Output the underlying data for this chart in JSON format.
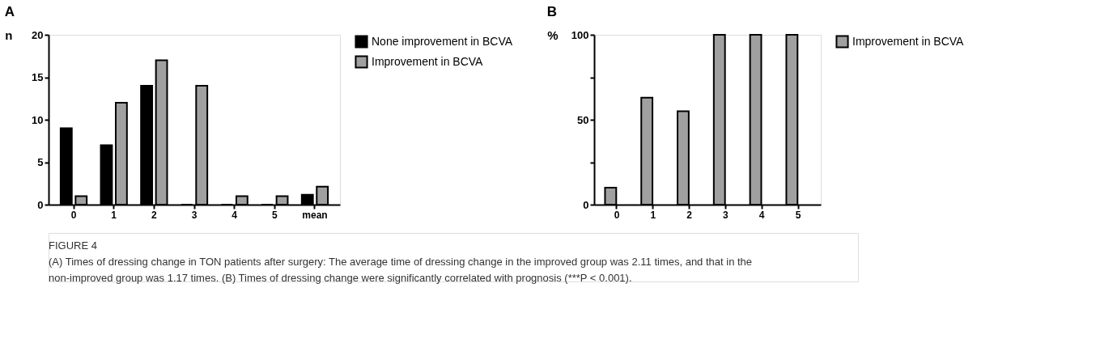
{
  "chart_data": [
    {
      "type": "bar",
      "title": "A",
      "ylabel": "n",
      "categories": [
        "0",
        "1",
        "2",
        "3",
        "4",
        "5",
        "mean"
      ],
      "series": [
        {
          "name": "None improvement in BCVA",
          "color": "#000000",
          "values": [
            9,
            7,
            14,
            0,
            0,
            0,
            1.17
          ]
        },
        {
          "name": "Improvement in BCVA",
          "color": "#a0a0a0",
          "values": [
            1,
            12,
            17,
            14,
            1,
            1,
            2.11
          ]
        }
      ],
      "ylim": [
        0,
        20
      ],
      "yticks": [
        0,
        5,
        10,
        15,
        20
      ],
      "grid": false,
      "legend": "top right",
      "annotations": [
        "FIGURE 4",
        "(A) Times of dressing change in TON patients after surgery: The average time of dressing change in the improved group was 2.11 times, and that in the",
        "non-improved group was 1.17 times. (B) Times of dressing change were significantly correlated with prognosis (***P < 0.001)."
      ]
    },
    {
      "type": "bar",
      "title": "B",
      "ylabel": "%",
      "categories": [
        "0",
        "1",
        "2",
        "3",
        "4",
        "5"
      ],
      "series": [
        {
          "name": "Improvement in BCVA",
          "color": "#a0a0a0",
          "values": [
            10,
            63,
            55,
            100,
            100,
            100
          ]
        }
      ],
      "ylim": [
        0,
        100
      ],
      "yticks": [
        0,
        {
          "value": 25,
          "label": null
        },
        50,
        {
          "value": 75,
          "label": null
        },
        100
      ],
      "grid": false,
      "legend": "top right"
    }
  ]
}
